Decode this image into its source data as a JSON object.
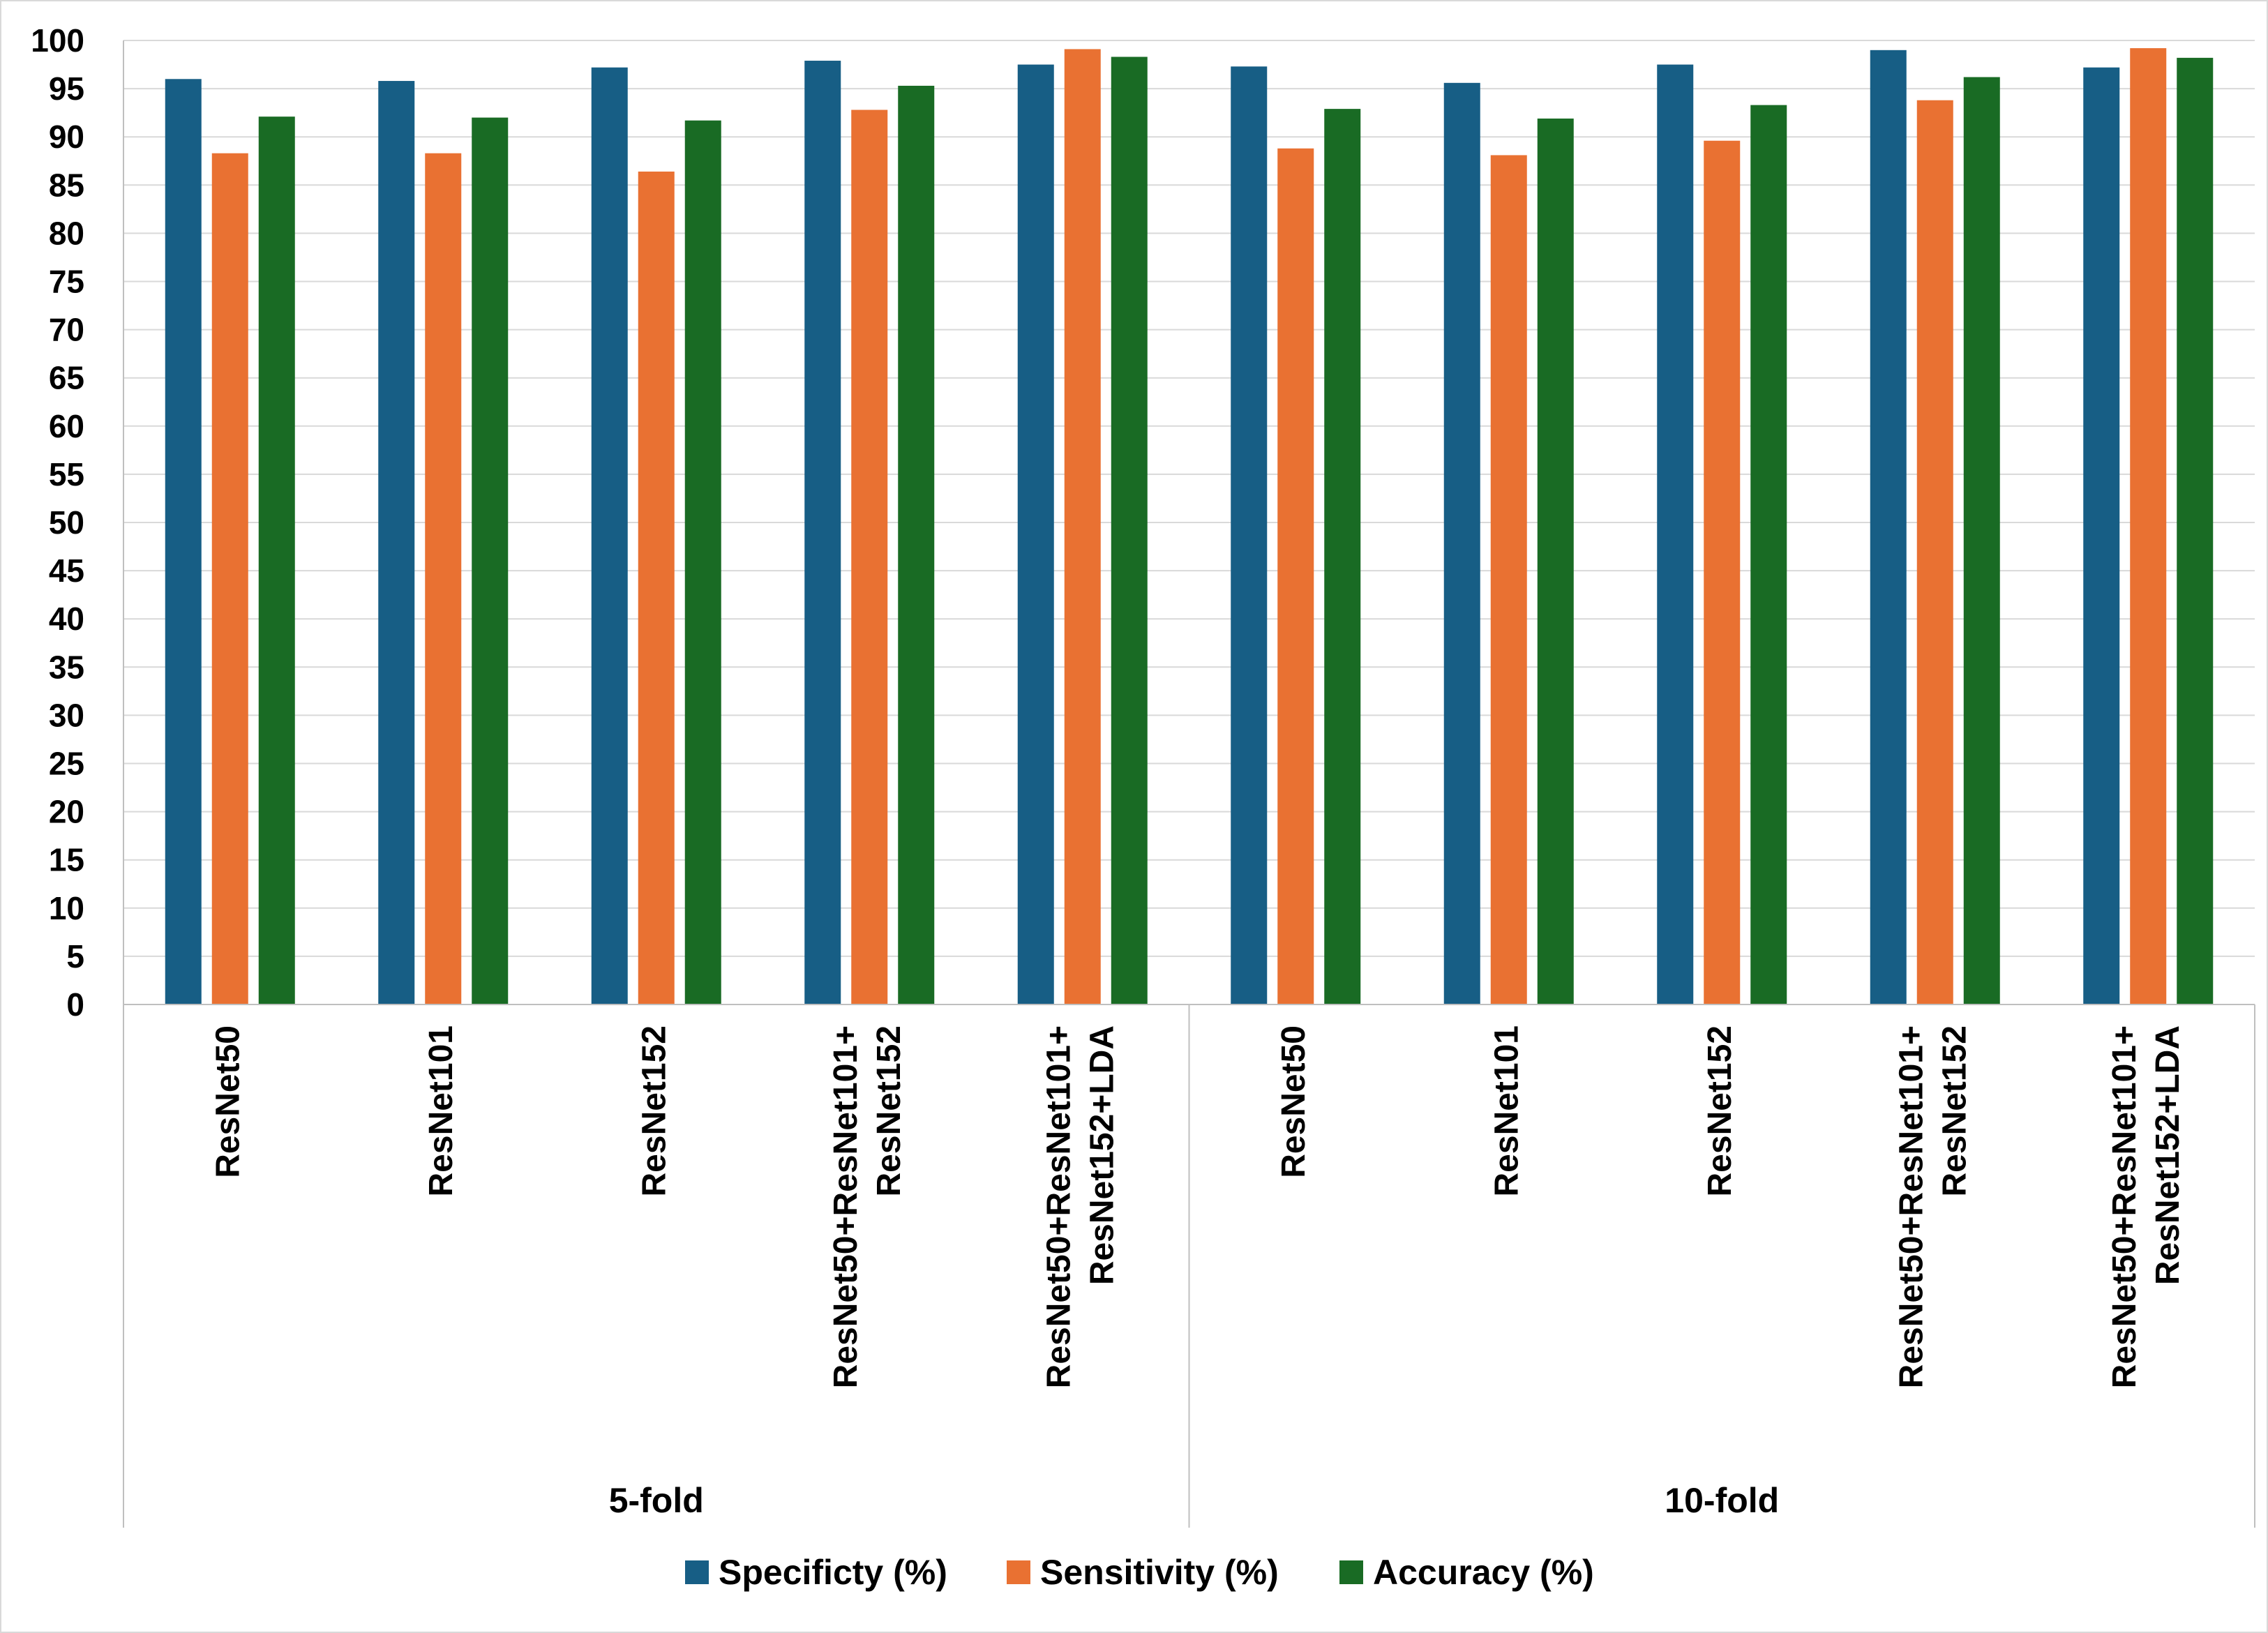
{
  "chart_data": {
    "type": "bar",
    "title": "",
    "xlabel": "",
    "ylabel": "",
    "ylim": [
      0,
      100
    ],
    "yticks": [
      0,
      5,
      10,
      15,
      20,
      25,
      30,
      35,
      40,
      45,
      50,
      55,
      60,
      65,
      70,
      75,
      80,
      85,
      90,
      95,
      100
    ],
    "grid": true,
    "legend_position": "bottom",
    "groups": [
      {
        "label": "5-fold",
        "categories": [
          [
            "ResNet50"
          ],
          [
            "ResNet101"
          ],
          [
            "ResNet152"
          ],
          [
            "ResNet50+ResNet101+",
            "ResNet152"
          ],
          [
            "ResNet50+ResNet101+",
            "ResNet152+LDA"
          ]
        ]
      },
      {
        "label": "10-fold",
        "categories": [
          [
            "ResNet50"
          ],
          [
            "ResNet101"
          ],
          [
            "ResNet152"
          ],
          [
            "ResNet50+ResNet101+",
            "ResNet152"
          ],
          [
            "ResNet50+ResNet101+",
            "ResNet152+LDA"
          ]
        ]
      }
    ],
    "series": [
      {
        "name": "Specificty (%)",
        "color": "#175e85",
        "values": [
          96.0,
          95.8,
          97.2,
          97.9,
          97.5,
          97.3,
          95.6,
          97.5,
          99.0,
          97.2
        ]
      },
      {
        "name": "Sensitivity (%)",
        "color": "#e97132",
        "values": [
          88.3,
          88.3,
          86.4,
          92.8,
          99.1,
          88.8,
          88.1,
          89.6,
          93.8,
          99.2
        ]
      },
      {
        "name": "Accuracy (%)",
        "color": "#196b24",
        "values": [
          92.1,
          92.0,
          91.7,
          95.3,
          98.3,
          92.9,
          91.9,
          93.3,
          96.2,
          98.2
        ]
      }
    ]
  }
}
